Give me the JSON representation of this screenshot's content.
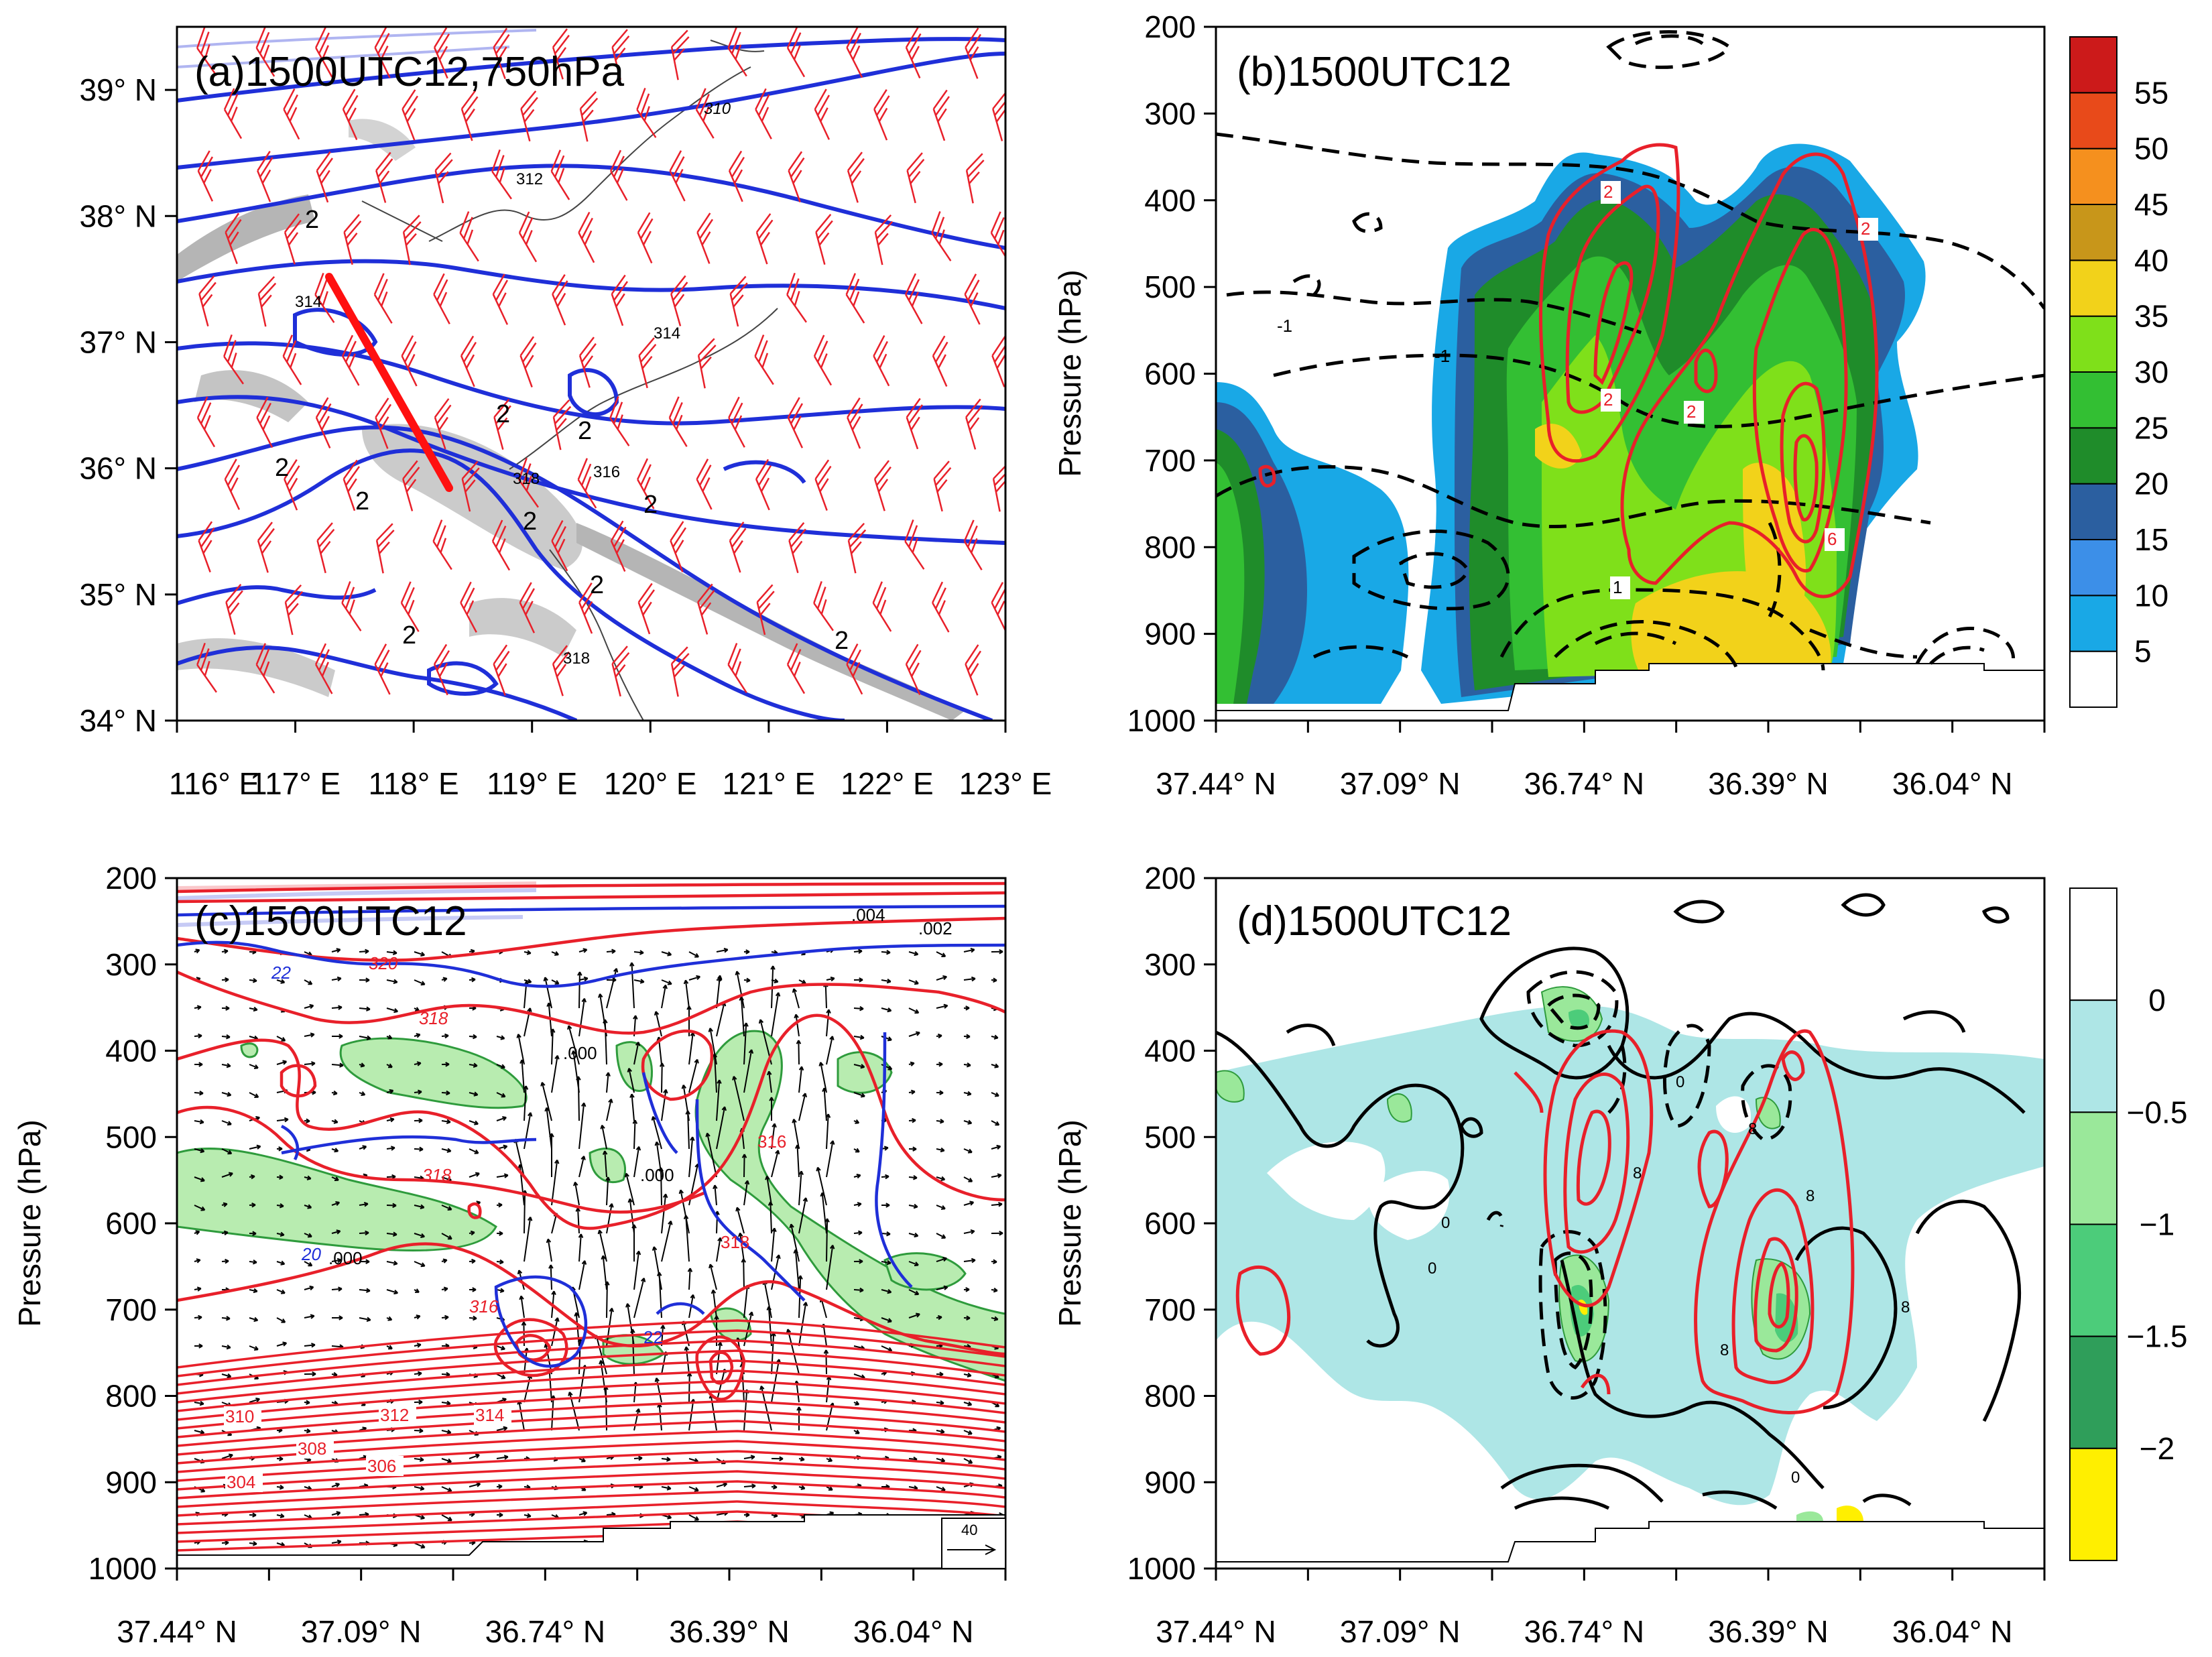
{
  "chart_data": [
    {
      "type": "contour-map",
      "panel": "a",
      "title": "(a)1500UTC12,750hPa",
      "x": {
        "ticks": [
          116,
          117,
          118,
          119,
          120,
          121,
          122,
          123
        ],
        "tick_labels": [
          "116° E",
          "117° E",
          "118° E",
          "119° E",
          "120° E",
          "121° E",
          "122° E",
          "123° E"
        ],
        "range": [
          116,
          123
        ]
      },
      "y": {
        "ticks": [
          34,
          35,
          36,
          37,
          38,
          39
        ],
        "tick_labels": [
          "34° N",
          "35° N",
          "36° N",
          "37° N",
          "38° N",
          "39° N"
        ],
        "range": [
          34,
          39.5
        ]
      },
      "theta_e_contour_labels": [
        "310",
        "312",
        "314",
        "314",
        "316",
        "318",
        "318"
      ],
      "other_contour_labels": [
        "2",
        "2",
        "2",
        "2",
        "2",
        "2",
        "2",
        "2",
        "2",
        "2"
      ],
      "cross_section_line": {
        "start": [
          117.3,
          37.5
        ],
        "end": [
          118.3,
          35.85
        ]
      }
    },
    {
      "type": "filled-contour",
      "panel": "b",
      "title": "(b)1500UTC12",
      "xlabel": "",
      "ylabel": "Pressure (hPa)",
      "x_tick_labels": [
        "37.44° N",
        "37.09° N",
        "36.74° N",
        "36.39° N",
        "36.04° N"
      ],
      "y_ticks": [
        200,
        300,
        400,
        500,
        600,
        700,
        800,
        900,
        1000
      ],
      "ylim": [
        1000,
        200
      ],
      "colorbar_levels": [
        5,
        10,
        15,
        20,
        25,
        30,
        35,
        40,
        45,
        50,
        55
      ],
      "colorbar_colors": [
        "#ffffff",
        "#19a8e6",
        "#3c8fe8",
        "#2b5fa0",
        "#1f8c2a",
        "#33bf33",
        "#7fe01a",
        "#f2d21a",
        "#c8961a",
        "#f5901e",
        "#e84a1a",
        "#cc1a1a"
      ],
      "contour_labels": [
        "2",
        "2",
        "2",
        "2",
        "6",
        "1",
        "-1",
        "-1"
      ]
    },
    {
      "type": "contour-vector",
      "panel": "c",
      "title": "(c)1500UTC12",
      "ylabel": "Pressure (hPa)",
      "x_tick_labels": [
        "37.44° N",
        "37.09° N",
        "36.74° N",
        "36.39° N",
        "36.04° N"
      ],
      "y_ticks": [
        200,
        300,
        400,
        500,
        600,
        700,
        800,
        900,
        1000
      ],
      "ylim": [
        1000,
        200
      ],
      "theta_e_labels": [
        "304",
        "306",
        "308",
        "310",
        "312",
        "314",
        "316",
        "318",
        "318",
        "318",
        "320",
        "316"
      ],
      "other_labels": [
        ".000",
        ".000",
        ".000",
        ".002",
        ".004",
        "22",
        "20",
        "22"
      ],
      "reference_vector": "40"
    },
    {
      "type": "filled-contour",
      "panel": "d",
      "title": "(d)1500UTC12",
      "ylabel": "Pressure (hPa)",
      "x_tick_labels": [
        "37.44° N",
        "37.09° N",
        "36.74° N",
        "36.39° N",
        "36.04° N"
      ],
      "y_ticks": [
        200,
        300,
        400,
        500,
        600,
        700,
        800,
        900,
        1000
      ],
      "ylim": [
        1000,
        200
      ],
      "colorbar_levels": [
        0,
        -0.5,
        -1,
        -1.5,
        -2
      ],
      "colorbar_level_labels": [
        "0",
        "−0.5",
        "−1",
        "−1.5",
        "−2"
      ],
      "colorbar_colors": [
        "#ffffff",
        "#aee6e6",
        "#9ae89a",
        "#4ccc7a",
        "#2f9e5a",
        "#ffef00"
      ],
      "contour_labels": [
        "0",
        "0",
        "0",
        "0",
        "8",
        "8",
        "8",
        "8",
        "8"
      ]
    }
  ]
}
